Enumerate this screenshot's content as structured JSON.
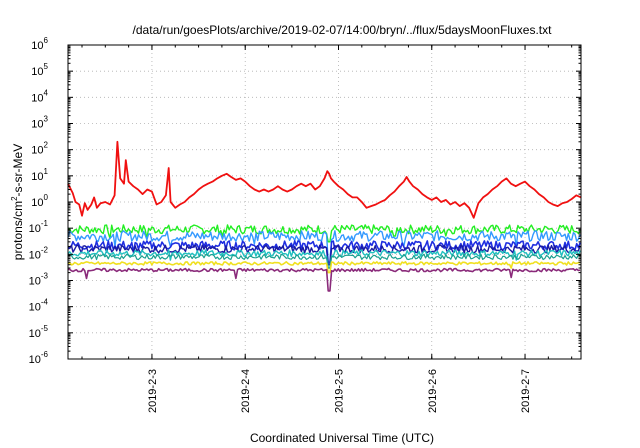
{
  "chart_data": {
    "type": "line",
    "title": "/data/run/goesPlots/archive/2019-02-07/14:00/bryn/../flux/5daysMoonFluxes.txt",
    "xlabel": "Coordinated Universal Time (UTC)",
    "ylabel": "protons/cm2-s-sr-MeV",
    "ylabel_parts": {
      "base": "protons/cm",
      "sup": "2",
      "rest": "-s-sr-MeV"
    },
    "yscale": "log",
    "ylim_exp": [
      -6,
      6
    ],
    "y_ticks": [
      {
        "base": "10",
        "exp": "6"
      },
      {
        "base": "10",
        "exp": "5"
      },
      {
        "base": "10",
        "exp": "4"
      },
      {
        "base": "10",
        "exp": "3"
      },
      {
        "base": "10",
        "exp": "2"
      },
      {
        "base": "10",
        "exp": "1"
      },
      {
        "base": "10",
        "exp": "0"
      },
      {
        "base": "10",
        "exp": "-1"
      },
      {
        "base": "10",
        "exp": "-2"
      },
      {
        "base": "10",
        "exp": "-3"
      },
      {
        "base": "10",
        "exp": "-4"
      },
      {
        "base": "10",
        "exp": "-5"
      },
      {
        "base": "10",
        "exp": "-6"
      }
    ],
    "xlim_days": [
      2.1,
      7.6
    ],
    "x_ticks": [
      {
        "day": 3,
        "label": "2019-2-3"
      },
      {
        "day": 4,
        "label": "2019-2-4"
      },
      {
        "day": 5,
        "label": "2019-2-5"
      },
      {
        "day": 6,
        "label": "2019-2-6"
      },
      {
        "day": 7,
        "label": "2019-2-7"
      }
    ],
    "grid": true,
    "series": [
      {
        "color": "#f01010",
        "width": 1.8,
        "points": [
          [
            2.1,
            5
          ],
          [
            2.15,
            2.2
          ],
          [
            2.18,
            1.0
          ],
          [
            2.22,
            0.8
          ],
          [
            2.25,
            0.3
          ],
          [
            2.28,
            0.9
          ],
          [
            2.31,
            0.5
          ],
          [
            2.35,
            0.8
          ],
          [
            2.38,
            1.5
          ],
          [
            2.41,
            0.6
          ],
          [
            2.45,
            0.9
          ],
          [
            2.5,
            1.0
          ],
          [
            2.55,
            0.8
          ],
          [
            2.6,
            1.8
          ],
          [
            2.63,
            200
          ],
          [
            2.66,
            8
          ],
          [
            2.7,
            5
          ],
          [
            2.72,
            40
          ],
          [
            2.75,
            6
          ],
          [
            2.8,
            4
          ],
          [
            2.85,
            3
          ],
          [
            2.9,
            2
          ],
          [
            2.95,
            3
          ],
          [
            3.0,
            2.5
          ],
          [
            3.05,
            0.8
          ],
          [
            3.1,
            1.0
          ],
          [
            3.15,
            1.8
          ],
          [
            3.18,
            20
          ],
          [
            3.2,
            1.0
          ],
          [
            3.25,
            0.6
          ],
          [
            3.3,
            0.8
          ],
          [
            3.35,
            1.0
          ],
          [
            3.4,
            1.5
          ],
          [
            3.45,
            2
          ],
          [
            3.5,
            3
          ],
          [
            3.55,
            4
          ],
          [
            3.6,
            5
          ],
          [
            3.65,
            6
          ],
          [
            3.7,
            8
          ],
          [
            3.75,
            10
          ],
          [
            3.8,
            12
          ],
          [
            3.85,
            9
          ],
          [
            3.9,
            7
          ],
          [
            3.95,
            8
          ],
          [
            4.0,
            6
          ],
          [
            4.05,
            4
          ],
          [
            4.1,
            3
          ],
          [
            4.15,
            2.5
          ],
          [
            4.2,
            3
          ],
          [
            4.25,
            2.5
          ],
          [
            4.3,
            3
          ],
          [
            4.35,
            4
          ],
          [
            4.4,
            3
          ],
          [
            4.45,
            2.5
          ],
          [
            4.5,
            3
          ],
          [
            4.55,
            4
          ],
          [
            4.6,
            5
          ],
          [
            4.65,
            4
          ],
          [
            4.7,
            5
          ],
          [
            4.75,
            3
          ],
          [
            4.8,
            4
          ],
          [
            4.85,
            8
          ],
          [
            4.88,
            15
          ],
          [
            4.9,
            12
          ],
          [
            4.92,
            8
          ],
          [
            4.95,
            6
          ],
          [
            5.0,
            4
          ],
          [
            5.05,
            3
          ],
          [
            5.1,
            2
          ],
          [
            5.15,
            1.5
          ],
          [
            5.2,
            1.5
          ],
          [
            5.25,
            1.0
          ],
          [
            5.3,
            0.6
          ],
          [
            5.35,
            0.7
          ],
          [
            5.4,
            0.8
          ],
          [
            5.45,
            1.0
          ],
          [
            5.5,
            1.2
          ],
          [
            5.55,
            1.8
          ],
          [
            5.6,
            2.5
          ],
          [
            5.65,
            4
          ],
          [
            5.7,
            6
          ],
          [
            5.73,
            9
          ],
          [
            5.76,
            6
          ],
          [
            5.8,
            4
          ],
          [
            5.85,
            3
          ],
          [
            5.9,
            2
          ],
          [
            5.95,
            1.5
          ],
          [
            6.0,
            1.2
          ],
          [
            6.05,
            1.5
          ],
          [
            6.1,
            1.0
          ],
          [
            6.15,
            1.2
          ],
          [
            6.2,
            0.8
          ],
          [
            6.25,
            1.0
          ],
          [
            6.3,
            0.7
          ],
          [
            6.35,
            0.9
          ],
          [
            6.4,
            0.6
          ],
          [
            6.45,
            0.25
          ],
          [
            6.5,
            0.9
          ],
          [
            6.55,
            1.5
          ],
          [
            6.6,
            2
          ],
          [
            6.65,
            3
          ],
          [
            6.7,
            4
          ],
          [
            6.75,
            6
          ],
          [
            6.8,
            8
          ],
          [
            6.85,
            5
          ],
          [
            6.9,
            4
          ],
          [
            6.95,
            5
          ],
          [
            7.0,
            6
          ],
          [
            7.05,
            4
          ],
          [
            7.1,
            3
          ],
          [
            7.15,
            2
          ],
          [
            7.2,
            1.5
          ],
          [
            7.25,
            1.0
          ],
          [
            7.3,
            0.8
          ],
          [
            7.35,
            0.7
          ],
          [
            7.4,
            0.9
          ],
          [
            7.45,
            1.0
          ],
          [
            7.5,
            1.3
          ],
          [
            7.55,
            1.8
          ],
          [
            7.6,
            1.5
          ]
        ]
      },
      {
        "color": "#22ee22",
        "width": 1.4,
        "base": 0.09,
        "amp": 0.35,
        "dips": [
          [
            2.55,
            0.04
          ],
          [
            2.95,
            0.04
          ],
          [
            3.75,
            0.05
          ],
          [
            4.9,
            0.03
          ],
          [
            5.6,
            0.05
          ],
          [
            6.15,
            0.05
          ]
        ]
      },
      {
        "color": "#3399ff",
        "width": 1.4,
        "base": 0.05,
        "amp": 0.4,
        "dips": [
          [
            2.6,
            0.02
          ],
          [
            3.2,
            0.02
          ],
          [
            4.1,
            0.025
          ],
          [
            4.9,
            0.005
          ],
          [
            5.7,
            0.02
          ],
          [
            6.9,
            0.02
          ]
        ]
      },
      {
        "color": "#1f2ee0",
        "width": 1.6,
        "base": 0.022,
        "amp": 0.35,
        "dips": [
          [
            2.8,
            0.012
          ],
          [
            4.9,
            0.004
          ],
          [
            5.9,
            0.012
          ]
        ]
      },
      {
        "color": "#1a1aa0",
        "width": 1.4,
        "base": 0.016,
        "amp": 0.3,
        "dips": [
          [
            4.9,
            0.004
          ]
        ]
      },
      {
        "color": "#20c0c0",
        "width": 1.4,
        "base": 0.011,
        "amp": 0.25,
        "dips": [
          [
            3.2,
            0.006
          ],
          [
            4.9,
            0.003
          ],
          [
            6.9,
            0.006
          ]
        ]
      },
      {
        "color": "#1aa090",
        "width": 1.2,
        "base": 0.008,
        "amp": 0.2,
        "dips": [
          [
            4.9,
            0.003
          ]
        ]
      },
      {
        "color": "#f0e020",
        "width": 1.6,
        "base": 0.0045,
        "amp": 0.12,
        "dips": [
          [
            4.9,
            0.002
          ],
          [
            6.85,
            0.003
          ]
        ]
      },
      {
        "color": "#8a2a7a",
        "width": 1.6,
        "base": 0.0025,
        "amp": 0.12,
        "dips": [
          [
            2.3,
            0.0012
          ],
          [
            3.9,
            0.0012
          ],
          [
            4.9,
            0.0004
          ],
          [
            6.85,
            0.0013
          ]
        ]
      }
    ]
  }
}
